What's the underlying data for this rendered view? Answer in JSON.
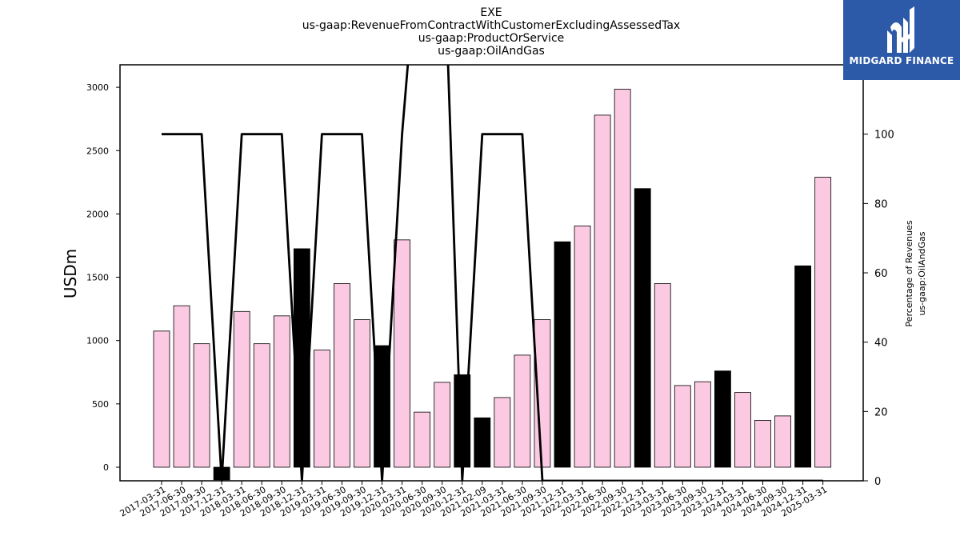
{
  "chart_data": {
    "type": "bar",
    "title_lines": [
      "EXE",
      "us-gaap:RevenueFromContractWithCustomerExcludingAssessedTax",
      "us-gaap:ProductOrService",
      "us-gaap:OilAndGas"
    ],
    "ylabel": "USDm",
    "y2label_lines": [
      "Percentage of Revenues",
      "us-gaap:OilAndGas"
    ],
    "ylim": [
      -110,
      3200
    ],
    "y2lim": [
      0,
      120
    ],
    "yticks": [
      0,
      500,
      1000,
      1500,
      2000,
      2500,
      3000
    ],
    "y2ticks": [
      0,
      20,
      40,
      60,
      80,
      100
    ],
    "categories": [
      "2017-03-31",
      "2017-06-30",
      "2017-09-30",
      "2017-12-31",
      "2018-03-31",
      "2018-06-30",
      "2018-09-30",
      "2018-12-31",
      "2019-03-31",
      "2019-06-30",
      "2019-09-30",
      "2019-12-31",
      "2020-03-31",
      "2020-06-30",
      "2020-09-30",
      "2020-12-31",
      "2021-02-09",
      "2021-03-31",
      "2021-06-30",
      "2021-09-30",
      "2021-12-31",
      "2022-03-31",
      "2022-06-30",
      "2022-09-30",
      "2022-12-31",
      "2023-03-31",
      "2023-06-30",
      "2023-09-30",
      "2023-12-31",
      "2024-03-31",
      "2024-06-30",
      "2024-09-30",
      "2024-12-31",
      "2025-03-31"
    ],
    "values": [
      1075,
      1275,
      975,
      -100,
      1230,
      975,
      1195,
      1725,
      925,
      1450,
      1165,
      960,
      1795,
      435,
      670,
      730,
      390,
      550,
      885,
      1165,
      1780,
      1905,
      2780,
      2985,
      2200,
      1450,
      645,
      675,
      760,
      590,
      370,
      405,
      1590,
      2290
    ],
    "bar_colors": [
      "#fbc9e2",
      "#fbc9e2",
      "#fbc9e2",
      "#000000",
      "#fbc9e2",
      "#fbc9e2",
      "#fbc9e2",
      "#000000",
      "#fbc9e2",
      "#fbc9e2",
      "#fbc9e2",
      "#000000",
      "#fbc9e2",
      "#fbc9e2",
      "#fbc9e2",
      "#000000",
      "#000000",
      "#fbc9e2",
      "#fbc9e2",
      "#fbc9e2",
      "#000000",
      "#fbc9e2",
      "#fbc9e2",
      "#fbc9e2",
      "#000000",
      "#fbc9e2",
      "#fbc9e2",
      "#fbc9e2",
      "#000000",
      "#fbc9e2",
      "#fbc9e2",
      "#fbc9e2",
      "#000000",
      "#fbc9e2"
    ],
    "series": [
      {
        "values": [
          100,
          100,
          100,
          0,
          100,
          100,
          100,
          0,
          100,
          100,
          100,
          0,
          100,
          170,
          170,
          0,
          100,
          100,
          100,
          0,
          0,
          0,
          0,
          0,
          0,
          0,
          0,
          0,
          0,
          0,
          0,
          0,
          0,
          0
        ],
        "color": "#000000"
      }
    ],
    "grid": false,
    "legend": "none"
  },
  "logo": {
    "text": "MIDGARD FINANCE",
    "icon": "midgard-logo-icon",
    "color": "#2d5aa8"
  }
}
